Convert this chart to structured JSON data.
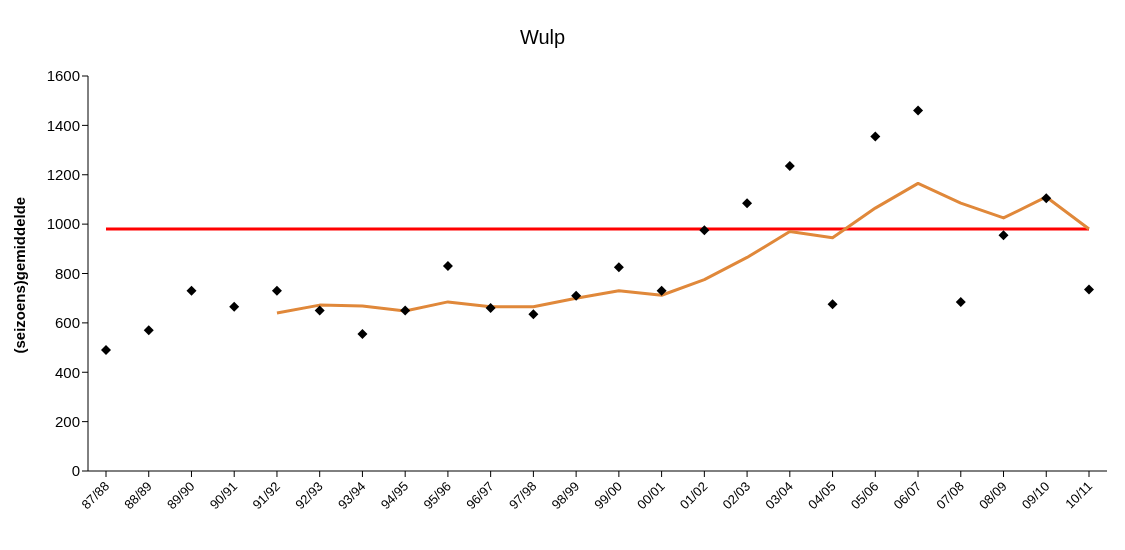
{
  "chart_data": {
    "type": "scatter",
    "title": "Wulp",
    "ylabel": "(seizoens)gemiddelde",
    "categories": [
      "87/88",
      "88/89",
      "89/90",
      "90/91",
      "91/92",
      "92/93",
      "93/94",
      "94/95",
      "95/96",
      "96/97",
      "97/98",
      "98/99",
      "99/00",
      "00/01",
      "01/02",
      "02/03",
      "03/04",
      "04/05",
      "05/06",
      "06/07",
      "07/08",
      "08/09",
      "09/10",
      "10/11"
    ],
    "series": [
      {
        "color": "#000000",
        "marker": "diamond",
        "values": [
          490,
          570,
          730,
          665,
          730,
          650,
          555,
          650,
          830,
          660,
          635,
          710,
          825,
          730,
          975,
          1085,
          1235,
          675,
          1355,
          1460,
          685,
          955,
          1105,
          735
        ]
      },
      {
        "type": "line",
        "color": "#e0883a",
        "values": [
          null,
          null,
          null,
          null,
          640,
          672,
          668,
          648,
          685,
          665,
          665,
          700,
          730,
          712,
          775,
          865,
          970,
          945,
          1065,
          1165,
          1085,
          1025,
          1110,
          980
        ]
      }
    ],
    "ref_lines": [
      {
        "axis": "y",
        "value": 980,
        "color": "#ff0000"
      }
    ],
    "ylim": [
      0,
      1600
    ],
    "yticks": [
      0,
      200,
      400,
      600,
      800,
      1000,
      1200,
      1400,
      1600
    ],
    "grid": false
  }
}
